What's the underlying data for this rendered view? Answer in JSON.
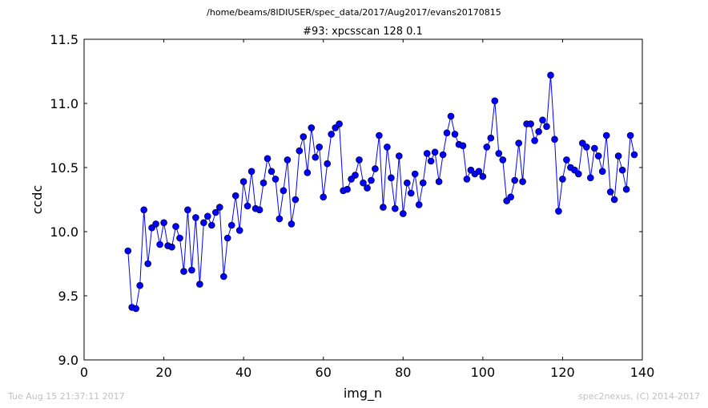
{
  "header": {
    "suptitle": "/home/beams/8IDIUSER/spec_data/2017/Aug2017/evans20170815"
  },
  "footer": {
    "timestamp": "Tue Aug 15 21:37:11 2017",
    "credit": "spec2nexus, (C) 2014-2017"
  },
  "chart_data": {
    "type": "line",
    "title": "#93: xpcsscan 128 0.1",
    "xlabel": "img_n",
    "ylabel": "ccdc",
    "xlim": [
      0,
      140
    ],
    "ylim": [
      9.0,
      11.5
    ],
    "xticks": [
      0,
      20,
      40,
      60,
      80,
      100,
      120,
      140
    ],
    "yticks": [
      9.0,
      9.5,
      10.0,
      10.5,
      11.0,
      11.5
    ],
    "xtick_labels": [
      "0",
      "20",
      "40",
      "60",
      "80",
      "100",
      "120",
      "140"
    ],
    "ytick_labels": [
      "9.0",
      "9.5",
      "10.0",
      "10.5",
      "11.0",
      "11.5"
    ],
    "grid": false,
    "line_color": "#0000ff",
    "marker": "circle",
    "series": [
      {
        "x": [
          11,
          12,
          13,
          14,
          15,
          16,
          17,
          18,
          19,
          20,
          21,
          22,
          23,
          24,
          25,
          26,
          27,
          28,
          29,
          30,
          31,
          32,
          33,
          34,
          35,
          36,
          37,
          38,
          39,
          40,
          41,
          42,
          43,
          44,
          45,
          46,
          47,
          48,
          49,
          50,
          51,
          52,
          53,
          54,
          55,
          56,
          57,
          58,
          59,
          60,
          61,
          62,
          63,
          64,
          65,
          66,
          67,
          68,
          69,
          70,
          71,
          72,
          73,
          74,
          75,
          76,
          77,
          78,
          79,
          80,
          81,
          82,
          83,
          84,
          85,
          86,
          87,
          88,
          89,
          90,
          91,
          92,
          93,
          94,
          95,
          96,
          97,
          98,
          99,
          100,
          101,
          102,
          103,
          104,
          105,
          106,
          107,
          108,
          109,
          110,
          111,
          112,
          113,
          114,
          115,
          116,
          117,
          118,
          119,
          120,
          121,
          122,
          123,
          124,
          125,
          126,
          127,
          128,
          129,
          130,
          131,
          132,
          133,
          134,
          135,
          136,
          137,
          138
        ],
        "y": [
          9.85,
          9.41,
          9.4,
          9.58,
          10.17,
          9.75,
          10.03,
          10.06,
          9.9,
          10.07,
          9.89,
          9.88,
          10.04,
          9.95,
          9.69,
          10.17,
          9.7,
          10.11,
          9.59,
          10.07,
          10.12,
          10.05,
          10.15,
          10.19,
          9.65,
          9.95,
          10.05,
          10.28,
          10.01,
          10.39,
          10.2,
          10.47,
          10.18,
          10.17,
          10.38,
          10.57,
          10.47,
          10.41,
          10.1,
          10.32,
          10.56,
          10.06,
          10.25,
          10.63,
          10.74,
          10.46,
          10.81,
          10.58,
          10.66,
          10.27,
          10.53,
          10.76,
          10.81,
          10.84,
          10.32,
          10.33,
          10.41,
          10.44,
          10.56,
          10.38,
          10.34,
          10.4,
          10.49,
          10.75,
          10.19,
          10.66,
          10.42,
          10.18,
          10.59,
          10.14,
          10.38,
          10.3,
          10.45,
          10.21,
          10.38,
          10.61,
          10.55,
          10.62,
          10.39,
          10.6,
          10.77,
          10.9,
          10.76,
          10.68,
          10.67,
          10.41,
          10.48,
          10.45,
          10.47,
          10.43,
          10.66,
          10.73,
          11.02,
          10.61,
          10.56,
          10.24,
          10.27,
          10.4,
          10.69,
          10.39,
          10.84,
          10.84,
          10.71,
          10.78,
          10.87,
          10.82,
          11.22,
          10.72,
          10.16,
          10.41,
          10.56,
          10.5,
          10.48,
          10.45,
          10.69,
          10.66,
          10.42,
          10.65,
          10.59,
          10.47,
          10.75,
          10.31,
          10.25,
          10.59,
          10.48,
          10.33,
          10.75,
          10.6
        ]
      }
    ]
  }
}
